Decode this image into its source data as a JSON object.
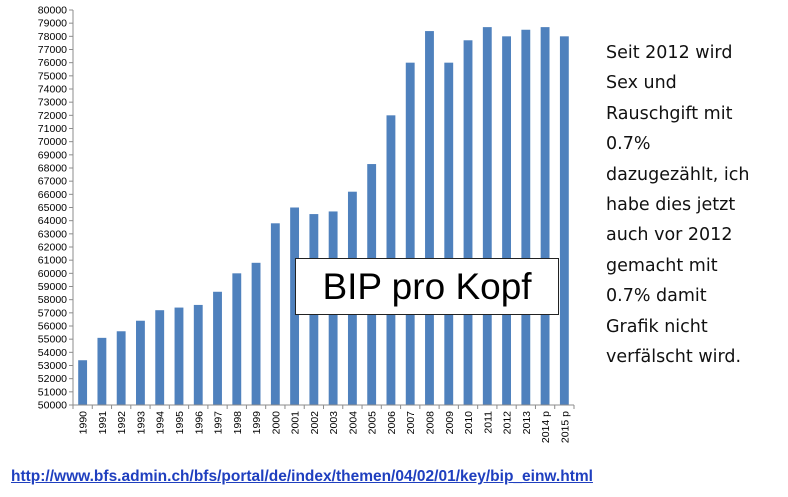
{
  "chart_data": {
    "type": "bar",
    "title": "BIP pro Kopf",
    "xlabel": "",
    "ylabel": "",
    "ylim": [
      50000,
      80000
    ],
    "ytick_step": 1000,
    "grid": false,
    "bar_color": "#4f81bd",
    "categories": [
      "1990",
      "1991",
      "1992",
      "1993",
      "1994",
      "1995",
      "1996",
      "1997",
      "1998",
      "1999",
      "2000",
      "2001",
      "2002",
      "2003",
      "2004",
      "2005",
      "2006",
      "2007",
      "2008",
      "2009",
      "2010",
      "2011",
      "2012",
      "2013",
      "2014 p",
      "2015 p"
    ],
    "values": [
      53400,
      55100,
      55600,
      56400,
      57200,
      57400,
      57600,
      58600,
      60000,
      60800,
      63800,
      65000,
      64500,
      64700,
      66200,
      68300,
      72000,
      76000,
      78400,
      76000,
      77700,
      78700,
      78000,
      78500,
      78700,
      78000
    ]
  },
  "note_lines": [
    "Seit 2012 wird",
    "Sex und",
    "Rauschgift mit",
    "0.7%",
    "dazugezählt, ich",
    "habe dies jetzt",
    "auch vor 2012",
    "gemacht mit",
    "0.7% damit",
    "Grafik nicht",
    "verfälscht wird."
  ],
  "source_url": "http://www.bfs.admin.ch/bfs/portal/de/index/themen/04/02/01/key/bip_einw.html"
}
